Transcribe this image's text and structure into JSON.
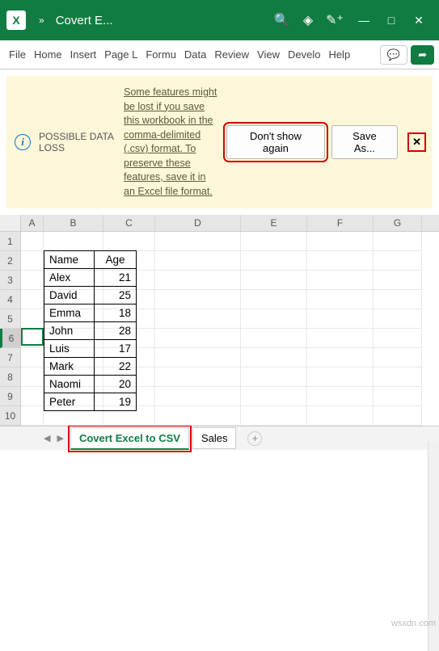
{
  "colors": {
    "accent": "#107c41",
    "warn_bg": "#fdf7d9",
    "highlight": "#d40000"
  },
  "title": {
    "filename": "Covert E..."
  },
  "ribbon": {
    "tabs": [
      "File",
      "Home",
      "Insert",
      "Page L",
      "Formu",
      "Data",
      "Review",
      "View",
      "Develo",
      "Help"
    ],
    "comment_icon": "💬",
    "share_icon": "➦"
  },
  "message_bar": {
    "info_icon": "i",
    "title": "POSSIBLE DATA LOSS",
    "body": "Some features might be lost if you save this workbook in the comma-delimited (.csv) format. To preserve these features, save it in an Excel file format.",
    "dont_show_label": "Don't show again",
    "save_as_label": "Save As...",
    "close_icon": "✕"
  },
  "grid": {
    "columns": [
      "A",
      "B",
      "C",
      "D",
      "E",
      "F",
      "G"
    ],
    "row_count": 10,
    "selected_row": 6,
    "table": {
      "headers": [
        "Name",
        "Age"
      ],
      "rows": [
        [
          "Alex",
          "21"
        ],
        [
          "David",
          "25"
        ],
        [
          "Emma",
          "18"
        ],
        [
          "John",
          "28"
        ],
        [
          "Luis",
          "17"
        ],
        [
          "Mark",
          "22"
        ],
        [
          "Naomi",
          "20"
        ],
        [
          "Peter",
          "19"
        ]
      ]
    }
  },
  "sheets": {
    "active": "Covert Excel to CSV",
    "other": "Sales",
    "add_icon": "+"
  },
  "watermark": "wsxdn.com"
}
